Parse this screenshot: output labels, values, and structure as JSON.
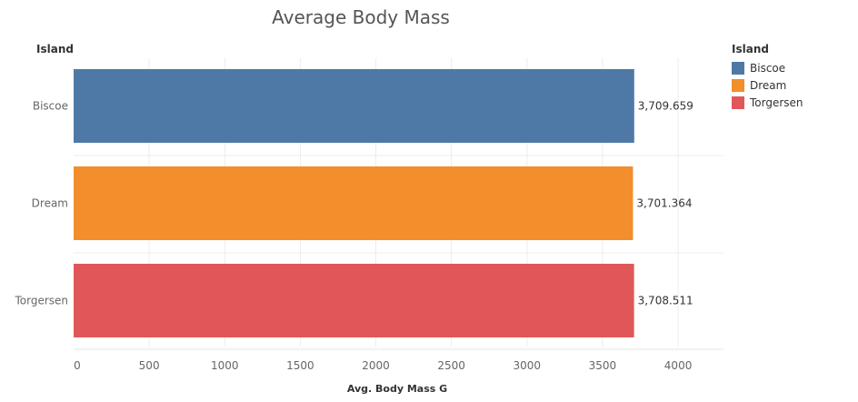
{
  "chart": {
    "title": "Average Body Mass",
    "row_header": "Island",
    "legend_title": "Island"
  },
  "legend": {
    "items": [
      {
        "label": "Biscoe",
        "color": "#4e79a7"
      },
      {
        "label": "Dream",
        "color": "#f28e2b"
      },
      {
        "label": "Torgersen",
        "color": "#e15759"
      }
    ]
  },
  "chart_data": {
    "type": "bar",
    "orientation": "horizontal",
    "title": "Average Body Mass",
    "xlabel": "Avg. Body Mass G",
    "ylabel": "Island",
    "categories": [
      "Biscoe",
      "Dream",
      "Torgersen"
    ],
    "values": [
      3709.659,
      3701.364,
      3708.511
    ],
    "value_labels": [
      "3,709.659",
      "3,701.364",
      "3,708.511"
    ],
    "colors": [
      "#4e79a7",
      "#f28e2b",
      "#e15759"
    ],
    "xlim": [
      0,
      4300
    ],
    "xticks": [
      0,
      500,
      1000,
      1500,
      2000,
      2500,
      3000,
      3500,
      4000
    ],
    "grid": true,
    "legend_position": "top-right"
  }
}
